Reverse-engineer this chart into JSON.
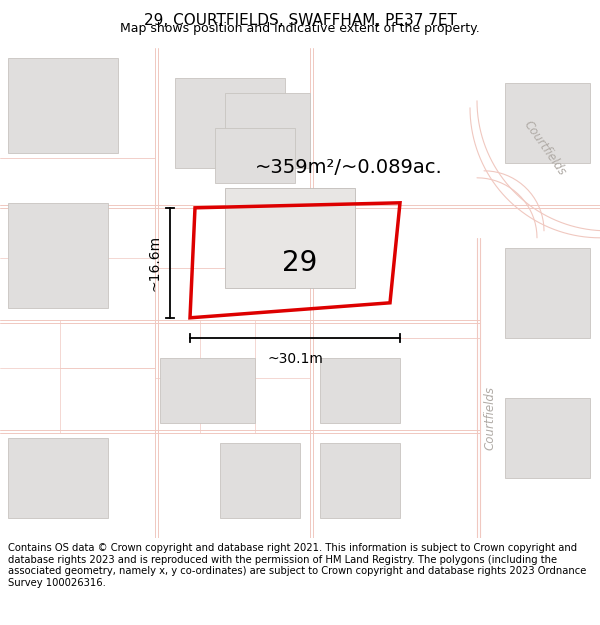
{
  "title": "29, COURTFIELDS, SWAFFHAM, PE37 7ET",
  "subtitle": "Map shows position and indicative extent of the property.",
  "area_label": "~359m²/~0.089ac.",
  "width_label": "~30.1m",
  "height_label": "~16.6m",
  "number_label": "29",
  "footer": "Contains OS data © Crown copyright and database right 2021. This information is subject to Crown copyright and database rights 2023 and is reproduced with the permission of HM Land Registry. The polygons (including the associated geometry, namely x, y co-ordinates) are subject to Crown copyright and database rights 2023 Ordnance Survey 100026316.",
  "map_bg": "#f7f6f4",
  "road_outline_color": "#f0c8c0",
  "building_color": "#e0dedd",
  "building_edge": "#c8c4c0",
  "plot_outline_color": "#dd0000",
  "title_fontsize": 11,
  "subtitle_fontsize": 9,
  "footer_fontsize": 7.2,
  "area_fontsize": 14,
  "number_fontsize": 20,
  "dim_fontsize": 10,
  "courtfields_label_color": "#b0aba6"
}
